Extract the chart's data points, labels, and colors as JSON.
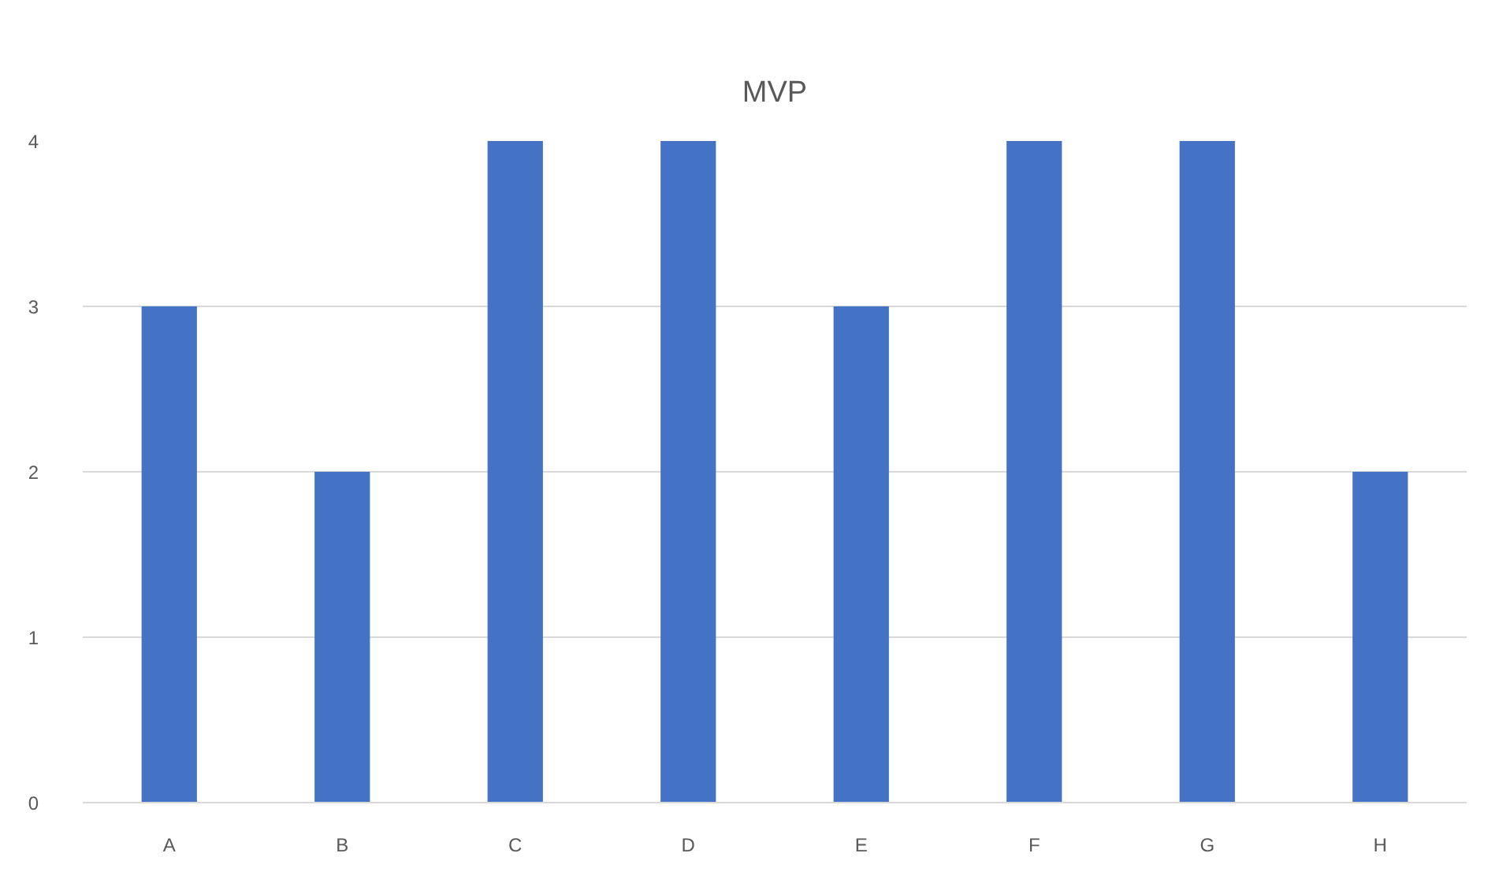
{
  "chart_data": {
    "type": "bar",
    "title": "MVP",
    "categories": [
      "A",
      "B",
      "C",
      "D",
      "E",
      "F",
      "G",
      "H"
    ],
    "values": [
      3,
      2,
      4,
      4,
      3,
      4,
      4,
      2
    ],
    "color": "#4472c4",
    "ylim": [
      0,
      4
    ],
    "yticks": [
      0,
      1,
      2,
      3,
      4
    ],
    "grid": "y"
  }
}
